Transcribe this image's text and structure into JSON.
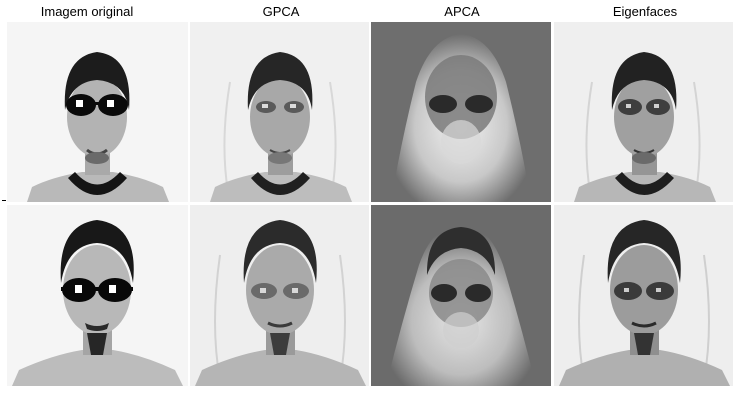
{
  "headers": {
    "col1": "Imagem original",
    "col2": "GPCA",
    "col3": "APCA",
    "col4": "Eigenfaces"
  },
  "rows": [
    {
      "subject": "man-with-sunglasses-1",
      "panels": [
        {
          "method": "original",
          "background": "#f5f5f5"
        },
        {
          "method": "gpca",
          "background": "#f0f0f0"
        },
        {
          "method": "apca",
          "background": "#6e6e6e"
        },
        {
          "method": "eigenfaces",
          "background": "#efefef"
        }
      ]
    },
    {
      "subject": "man-with-sunglasses-and-goatee-2",
      "panels": [
        {
          "method": "original",
          "background": "#f5f5f5"
        },
        {
          "method": "gpca",
          "background": "#eeeeee"
        },
        {
          "method": "apca",
          "background": "#6b6b6b"
        },
        {
          "method": "eigenfaces",
          "background": "#eeeeee"
        }
      ]
    }
  ]
}
